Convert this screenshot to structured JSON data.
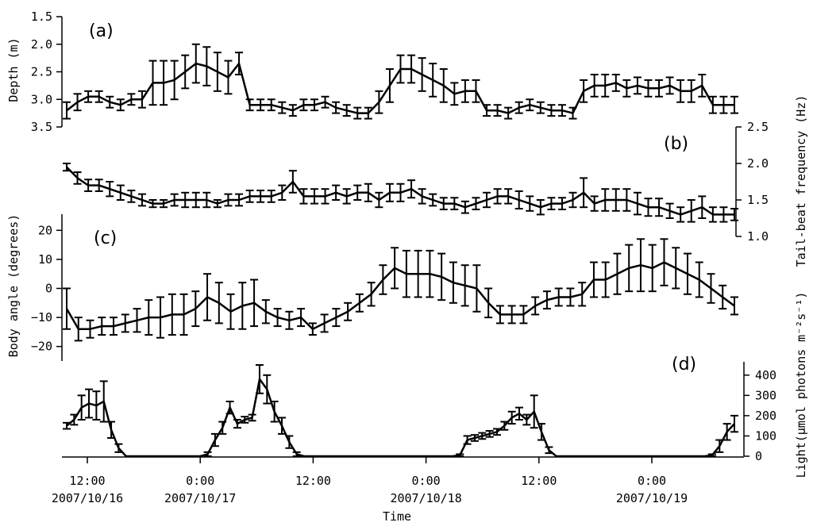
{
  "figure": {
    "xlabel": "Time",
    "x_ticks": [
      {
        "time": "12:00",
        "date": "2007/10/16",
        "hour": 12
      },
      {
        "time": "0:00",
        "date": "2007/10/17",
        "hour": 24
      },
      {
        "time": "12:00",
        "date": "",
        "hour": 36
      },
      {
        "time": "0:00",
        "date": "2007/10/18",
        "hour": 48
      },
      {
        "time": "12:00",
        "date": "",
        "hour": 60
      },
      {
        "time": "0:00",
        "date": "2007/10/19",
        "hour": 72
      }
    ]
  },
  "chart_data": [
    {
      "type": "line",
      "panel": "(a)",
      "ylabel": "Depth (m)",
      "ylim": [
        1.5,
        3.5
      ],
      "y_inverted": true,
      "y_ticks": [
        "1.5",
        "2.0",
        "2.5",
        "3.0",
        "3.5"
      ],
      "y_axis_side": "left",
      "x_start_hour": 10,
      "x_step_hour": 1,
      "series": [
        {
          "values": [
            3.2,
            3.05,
            2.95,
            2.95,
            3.05,
            3.1,
            3.0,
            3.0,
            2.7,
            2.7,
            2.65,
            2.5,
            2.35,
            2.4,
            2.5,
            2.6,
            2.35,
            3.1,
            3.1,
            3.1,
            3.15,
            3.2,
            3.1,
            3.1,
            3.05,
            3.15,
            3.2,
            3.25,
            3.25,
            3.05,
            2.75,
            2.45,
            2.45,
            2.55,
            2.65,
            2.75,
            2.9,
            2.85,
            2.85,
            3.2,
            3.2,
            3.25,
            3.15,
            3.1,
            3.15,
            3.2,
            3.2,
            3.25,
            2.85,
            2.75,
            2.75,
            2.7,
            2.8,
            2.75,
            2.8,
            2.8,
            2.75,
            2.85,
            2.85,
            2.75,
            3.1,
            3.1,
            3.1
          ],
          "errors": [
            0.15,
            0.15,
            0.1,
            0.1,
            0.1,
            0.1,
            0.1,
            0.15,
            0.4,
            0.4,
            0.35,
            0.3,
            0.35,
            0.35,
            0.35,
            0.3,
            0.2,
            0.1,
            0.1,
            0.1,
            0.1,
            0.1,
            0.1,
            0.1,
            0.1,
            0.1,
            0.1,
            0.1,
            0.1,
            0.2,
            0.3,
            0.25,
            0.25,
            0.3,
            0.3,
            0.3,
            0.2,
            0.2,
            0.2,
            0.1,
            0.1,
            0.1,
            0.1,
            0.1,
            0.1,
            0.1,
            0.1,
            0.1,
            0.2,
            0.2,
            0.2,
            0.15,
            0.15,
            0.15,
            0.15,
            0.15,
            0.15,
            0.2,
            0.2,
            0.2,
            0.15,
            0.15,
            0.15
          ]
        }
      ]
    },
    {
      "type": "line",
      "panel": "(b)",
      "ylabel": "Tail-beat frequency (Hz)",
      "ylim": [
        1.0,
        2.5
      ],
      "y_ticks": [
        "1.0",
        "1.5",
        "2.0",
        "2.5"
      ],
      "y_axis_side": "right",
      "x_start_hour": 10,
      "x_step_hour": 1,
      "series": [
        {
          "values": [
            1.95,
            1.8,
            1.7,
            1.7,
            1.65,
            1.6,
            1.55,
            1.5,
            1.45,
            1.45,
            1.5,
            1.5,
            1.5,
            1.5,
            1.45,
            1.5,
            1.5,
            1.55,
            1.55,
            1.55,
            1.6,
            1.75,
            1.55,
            1.55,
            1.55,
            1.6,
            1.55,
            1.6,
            1.6,
            1.5,
            1.6,
            1.6,
            1.65,
            1.55,
            1.5,
            1.45,
            1.45,
            1.4,
            1.45,
            1.5,
            1.55,
            1.55,
            1.5,
            1.45,
            1.4,
            1.45,
            1.45,
            1.5,
            1.6,
            1.45,
            1.5,
            1.5,
            1.5,
            1.45,
            1.4,
            1.4,
            1.35,
            1.3,
            1.35,
            1.4,
            1.3,
            1.3,
            1.3
          ],
          "errors": [
            0.05,
            0.08,
            0.08,
            0.08,
            0.1,
            0.1,
            0.08,
            0.08,
            0.05,
            0.05,
            0.08,
            0.1,
            0.1,
            0.1,
            0.05,
            0.08,
            0.08,
            0.08,
            0.08,
            0.08,
            0.1,
            0.15,
            0.1,
            0.1,
            0.1,
            0.1,
            0.1,
            0.1,
            0.12,
            0.1,
            0.12,
            0.12,
            0.12,
            0.1,
            0.08,
            0.08,
            0.08,
            0.08,
            0.08,
            0.1,
            0.1,
            0.1,
            0.12,
            0.1,
            0.1,
            0.08,
            0.08,
            0.1,
            0.2,
            0.1,
            0.15,
            0.15,
            0.15,
            0.15,
            0.12,
            0.12,
            0.1,
            0.1,
            0.15,
            0.15,
            0.1,
            0.1,
            0.08
          ]
        }
      ]
    },
    {
      "type": "line",
      "panel": "(c)",
      "ylabel": "Body angle (degrees)",
      "ylim": [
        -25,
        25
      ],
      "y_ticks": [
        "−20",
        "−10",
        "0",
        "10",
        "20"
      ],
      "y_tick_values": [
        -20,
        -10,
        0,
        10,
        20
      ],
      "y_axis_side": "left",
      "x_start_hour": 10,
      "x_step_hour": 1,
      "series": [
        {
          "values": [
            -7,
            -14,
            -14,
            -13,
            -13,
            -12,
            -11,
            -10,
            -10,
            -9,
            -9,
            -7,
            -3,
            -5,
            -8,
            -6,
            -5,
            -8,
            -10,
            -11,
            -10,
            -14,
            -12,
            -10,
            -8,
            -5,
            -2,
            3,
            7,
            5,
            5,
            5,
            4,
            2,
            1,
            0,
            -5,
            -9,
            -9,
            -9,
            -6,
            -4,
            -3,
            -3,
            -2,
            3,
            3,
            5,
            7,
            8,
            7,
            9,
            7,
            5,
            3,
            0,
            -3,
            -6
          ],
          "errors": [
            7,
            4,
            3,
            3,
            3,
            3,
            4,
            6,
            7,
            7,
            7,
            6,
            8,
            7,
            6,
            8,
            8,
            4,
            3,
            3,
            3,
            2,
            3,
            3,
            3,
            3,
            4,
            5,
            7,
            8,
            8,
            8,
            8,
            7,
            7,
            8,
            5,
            3,
            3,
            3,
            3,
            3,
            3,
            3,
            4,
            6,
            6,
            7,
            8,
            9,
            8,
            8,
            7,
            7,
            6,
            5,
            4,
            3
          ]
        }
      ]
    },
    {
      "type": "line",
      "panel": "(d)",
      "ylabel": "Light(μmol photons m⁻²s⁻¹)",
      "ylim": [
        0,
        450
      ],
      "y_ticks": [
        "0",
        "100",
        "200",
        "300",
        "400"
      ],
      "y_tick_values": [
        0,
        100,
        200,
        300,
        400
      ],
      "y_axis_side": "right",
      "x_start_hour": 10,
      "x_step_hour": 1,
      "series": [
        {
          "values": [
            150,
            180,
            240,
            260,
            250,
            270,
            130,
            40,
            0,
            0,
            0,
            0,
            0,
            0,
            0,
            0,
            0,
            0,
            0,
            10,
            80,
            140,
            240,
            160,
            180,
            190,
            380,
            330,
            220,
            150,
            70,
            10,
            0,
            0,
            0,
            0,
            0,
            0,
            0,
            0,
            0,
            0,
            0,
            0,
            0,
            0,
            0,
            0,
            0,
            0,
            0,
            0,
            0,
            5,
            80,
            90,
            100,
            110,
            120,
            150,
            190,
            210,
            180,
            220,
            120,
            30,
            0,
            0,
            0,
            0,
            0,
            0,
            0,
            0,
            0,
            0,
            0,
            0,
            0,
            0,
            0,
            0,
            0,
            0,
            0,
            0,
            0,
            5,
            50,
            120,
            160
          ],
          "errors": [
            15,
            25,
            60,
            70,
            70,
            100,
            40,
            20,
            0,
            0,
            0,
            0,
            0,
            0,
            0,
            0,
            0,
            0,
            0,
            10,
            30,
            30,
            30,
            20,
            15,
            15,
            70,
            70,
            50,
            40,
            30,
            10,
            0,
            0,
            0,
            0,
            0,
            0,
            0,
            0,
            0,
            0,
            0,
            0,
            0,
            0,
            0,
            0,
            0,
            0,
            0,
            0,
            0,
            5,
            20,
            15,
            15,
            15,
            15,
            20,
            30,
            30,
            25,
            80,
            40,
            15,
            0,
            0,
            0,
            0,
            0,
            0,
            0,
            0,
            0,
            0,
            0,
            0,
            0,
            0,
            0,
            0,
            0,
            0,
            0,
            0,
            0,
            5,
            30,
            40,
            40
          ]
        }
      ]
    }
  ]
}
